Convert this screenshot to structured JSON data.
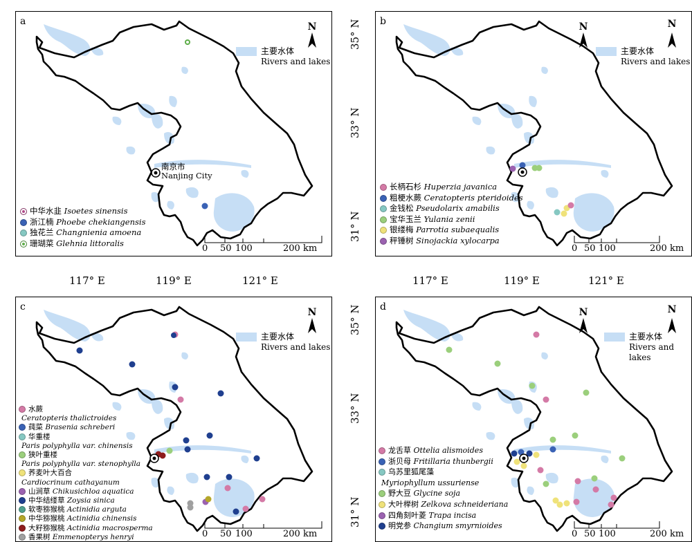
{
  "axes": {
    "lon": [
      "117° E",
      "119° E",
      "121° E"
    ],
    "lat": [
      "35° N",
      "33° N",
      "31° N"
    ]
  },
  "colors": {
    "water": "#c6def5",
    "boundary": "#000000"
  },
  "water_legend": {
    "zh": "主要水体",
    "en": "Rivers and lakes"
  },
  "north": "N",
  "scale": {
    "ticks": [
      "0",
      "50",
      "100"
    ],
    "end": "200 km"
  },
  "city": {
    "zh": "南京市",
    "en": "Nanjing City"
  },
  "panels": {
    "a": {
      "letter": "a",
      "legend": [
        {
          "zh": "中华水韭",
          "latin": "Isoetes sinensis",
          "color": "#b04a8a",
          "marker": "ring"
        },
        {
          "zh": "浙江楠",
          "latin": "Phoebe chekiangensis",
          "color": "#3a62b5",
          "marker": "dot"
        },
        {
          "zh": "独花兰",
          "latin": "Changnienia amoena",
          "color": "#86c8c2",
          "marker": "dot"
        },
        {
          "zh": "珊瑚菜",
          "latin": "Glehnia littoralis",
          "color": "#5fae4a",
          "marker": "ring"
        }
      ]
    },
    "b": {
      "letter": "b",
      "legend": [
        {
          "zh": "长柄石杉",
          "latin": "Huperzia javanica",
          "color": "#d47aa6"
        },
        {
          "zh": "粗梗水蕨",
          "latin": "Ceratopteris pteridoides",
          "color": "#3a62b5"
        },
        {
          "zh": "金钱松",
          "latin": "Pseudolarix amabilis",
          "color": "#86c8c2"
        },
        {
          "zh": "宝华玉兰",
          "latin": "Yulania zenii",
          "color": "#9bcf7c"
        },
        {
          "zh": "银缕梅",
          "latin": "Parrotia subaequalis",
          "color": "#efe27a"
        },
        {
          "zh": "秤锤树",
          "latin": "Sinojackia xylocarpa",
          "color": "#9b62b0"
        }
      ]
    },
    "c": {
      "letter": "c",
      "legend": [
        {
          "zh": "水蕨",
          "latin": "",
          "sub": "Ceratopteris thalictroides",
          "color": "#d47aa6"
        },
        {
          "zh": "莼菜",
          "latin": "Brasenia schreberi",
          "color": "#3a62b5"
        },
        {
          "zh": "华重楼",
          "latin": "",
          "sub": "Paris polyphylla var. chinensis",
          "color": "#86c8c2"
        },
        {
          "zh": "狭叶重楼",
          "latin": "",
          "sub": "Paris polyphylla var. stenophylla",
          "color": "#9bcf7c"
        },
        {
          "zh": "荞麦叶大百合",
          "latin": "",
          "sub": "Cardiocrinum cathayanum",
          "color": "#efe27a"
        },
        {
          "zh": "山涧草",
          "latin": "Chikusichloa aquatica",
          "color": "#9b62b0"
        },
        {
          "zh": "中华结缕草",
          "latin": "Zoysia sinica",
          "color": "#1f3f8f"
        },
        {
          "zh": "软枣猕猴桃",
          "latin": "Actinidia arguta",
          "color": "#4fa08f"
        },
        {
          "zh": "中华猕猴桃",
          "latin": "Actinidia chinensis",
          "color": "#b5a72a"
        },
        {
          "zh": "大籽猕猴桃",
          "latin": "Actinidia macrosperma",
          "color": "#8e1c1c"
        },
        {
          "zh": "香果树",
          "latin": "Emmenopterys henryi",
          "color": "#a0a0a0"
        }
      ]
    },
    "d": {
      "letter": "d",
      "legend": [
        {
          "zh": "龙舌草",
          "latin": "Ottelia alismoides",
          "color": "#d47aa6"
        },
        {
          "zh": "浙贝母",
          "latin": "Fritillaria thunbergii",
          "color": "#3a62b5"
        },
        {
          "zh": "乌苏里狐尾藻",
          "latin": "",
          "sub": "Myriophyllum ussuriense",
          "color": "#86c8c2"
        },
        {
          "zh": "野大豆",
          "latin": "Glycine soja",
          "color": "#9bcf7c"
        },
        {
          "zh": "大叶榉树",
          "latin": "Zelkova schneideriana",
          "color": "#efe27a"
        },
        {
          "zh": "四角刻叶菱",
          "latin": "Trapa incisa",
          "color": "#9b62b0"
        },
        {
          "zh": "明党参",
          "latin": "Changium smyrnioides",
          "color": "#1f3f8f"
        }
      ]
    }
  }
}
